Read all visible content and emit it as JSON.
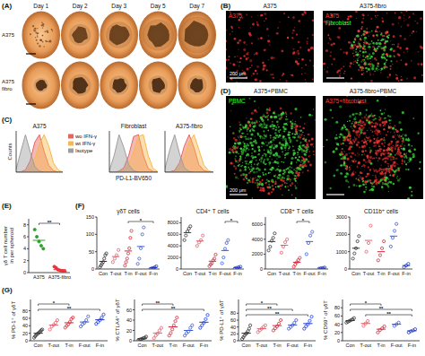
{
  "figure": {
    "panel_labels": [
      "(A)",
      "(B)",
      "(C)",
      "(D)",
      "(E)",
      "(F)",
      "(G)"
    ],
    "A": {
      "columns": [
        "Day 1",
        "Day 2",
        "Day 3",
        "Day 5",
        "Day 7"
      ],
      "rows": [
        "A375",
        "A375 fibro"
      ]
    },
    "B": {
      "titles": [
        "A375",
        "A375-fibro"
      ],
      "stains": [
        [
          {
            "text": "A375",
            "color": "#ff3b3b"
          }
        ],
        [
          {
            "text": "A375",
            "color": "#ff3b3b"
          },
          {
            "text": "Fibroblast",
            "color": "#3cff3c"
          }
        ]
      ],
      "scale": "200 μm"
    },
    "D": {
      "titles": [
        "A375+PBMC",
        "A375-fibro+PBMC"
      ],
      "stains": [
        [
          {
            "text": "PBMC",
            "color": "#3cff3c"
          }
        ],
        [
          {
            "text": "A375+fibroblast",
            "color": "#ff3b3b"
          }
        ]
      ],
      "scale": "200 μm"
    }
  },
  "chart_data": [
    {
      "type": "area",
      "title": "A375",
      "y_label": "Counts",
      "x": [
        0,
        1,
        2,
        3,
        4,
        5,
        6,
        7,
        8,
        9,
        10
      ],
      "xlim": [
        0,
        10
      ],
      "ylim": [
        0,
        110
      ],
      "tick_labels": false,
      "legend": "right",
      "series": [
        {
          "name": "wo IFN-γ",
          "color": "#e8645c",
          "values": [
            0,
            1,
            6,
            30,
            80,
            100,
            55,
            18,
            4,
            0,
            0
          ]
        },
        {
          "name": "wt IFN-γ",
          "color": "#f7b84b",
          "values": [
            0,
            0,
            2,
            10,
            35,
            75,
            100,
            70,
            25,
            6,
            0
          ]
        },
        {
          "name": "Isotype",
          "color": "#9e9e9e",
          "values": [
            8,
            55,
            100,
            55,
            15,
            3,
            0,
            0,
            0,
            0,
            0
          ]
        }
      ]
    },
    {
      "type": "area",
      "title": "Fibroblast",
      "x_label": "PD-L1-BV650",
      "x": [
        0,
        1,
        2,
        3,
        4,
        5,
        6,
        7,
        8,
        9,
        10
      ],
      "xlim": [
        0,
        10
      ],
      "ylim": [
        0,
        110
      ],
      "tick_labels": false,
      "series": [
        {
          "color": "#e8645c",
          "values": [
            0,
            0,
            3,
            12,
            45,
            95,
            100,
            45,
            10,
            2,
            0
          ]
        },
        {
          "color": "#f7b84b",
          "values": [
            0,
            0,
            1,
            5,
            20,
            55,
            95,
            100,
            45,
            10,
            1
          ]
        },
        {
          "color": "#9e9e9e",
          "values": [
            5,
            45,
            100,
            65,
            20,
            4,
            0,
            0,
            0,
            0,
            0
          ]
        }
      ]
    },
    {
      "type": "area",
      "title": "A375-fibro",
      "x": [
        0,
        1,
        2,
        3,
        4,
        5,
        6,
        7,
        8,
        9,
        10
      ],
      "xlim": [
        0,
        10
      ],
      "ylim": [
        0,
        110
      ],
      "tick_labels": false,
      "series": [
        {
          "color": "#e8645c",
          "values": [
            0,
            1,
            5,
            25,
            70,
            100,
            65,
            20,
            5,
            1,
            0
          ]
        },
        {
          "color": "#f7b84b",
          "values": [
            0,
            0,
            2,
            12,
            40,
            80,
            100,
            60,
            20,
            4,
            0
          ]
        },
        {
          "color": "#9e9e9e",
          "values": [
            10,
            60,
            100,
            50,
            12,
            2,
            0,
            0,
            0,
            0,
            0
          ]
        }
      ]
    },
    {
      "type": "dot",
      "y_label": "γδ T cell number in per spheroid",
      "categories": [
        "A375",
        "A375-fibro"
      ],
      "colors": [
        "#2ca02c",
        "#e8323c"
      ],
      "marker": "circle",
      "values": [
        [
          7.2,
          6.0,
          5.2,
          4.5,
          4.0
        ],
        [
          1.0,
          0.8,
          0.5,
          0.4,
          0.3,
          0.2,
          0.2
        ]
      ],
      "means": [
        5.4,
        0.5
      ],
      "ylim": [
        0,
        9
      ],
      "yticks": [
        0,
        2,
        4,
        6,
        8
      ],
      "annotations": [
        {
          "between": [
            "A375",
            "A375-fibro"
          ],
          "text": "**"
        }
      ]
    },
    {
      "type": "dot",
      "title": "γδT cells",
      "categories": [
        "Con",
        "T-out",
        "T-in",
        "F-out",
        "F-in"
      ],
      "colors": [
        "#333333",
        "#e0606e",
        "#d42a3a",
        "#3b5bd6",
        "#2038c8"
      ],
      "marker": "open-circle",
      "values": [
        [
          5,
          10,
          15,
          20,
          30,
          40,
          45
        ],
        [
          20,
          30,
          40,
          55
        ],
        [
          10,
          20,
          30,
          45,
          60,
          90,
          110
        ],
        [
          15,
          30,
          60,
          100,
          120
        ],
        [
          0,
          2,
          3,
          5,
          8
        ]
      ],
      "means": [
        22,
        36,
        52,
        65,
        4
      ],
      "ylim": [
        0,
        150
      ],
      "yticks": [
        0,
        50,
        100,
        150
      ],
      "annotations": [
        {
          "between": [
            "T-in",
            "F-in"
          ],
          "text": "*"
        }
      ]
    },
    {
      "type": "dot",
      "title": "CD4⁺ T cells",
      "categories": [
        "Con",
        "T-out",
        "T-in",
        "F-out",
        "F-in"
      ],
      "colors": [
        "#333333",
        "#e0606e",
        "#d42a3a",
        "#3b5bd6",
        "#2038c8"
      ],
      "marker": "open-circle",
      "values": [
        [
          5000,
          5800,
          6500,
          7000,
          7400
        ],
        [
          4000,
          4600,
          5000,
          5800
        ],
        [
          500,
          800,
          1000,
          1500,
          1800,
          2500
        ],
        [
          1000,
          2000,
          3500,
          4500,
          5000
        ],
        [
          100,
          200,
          300,
          400
        ]
      ],
      "means": [
        6300,
        4850,
        1350,
        3200,
        250
      ],
      "ylim": [
        0,
        9000
      ],
      "yticks": [
        0,
        2000,
        4000,
        6000,
        8000
      ],
      "annotations": [
        {
          "between": [
            "F-out",
            "F-in"
          ],
          "text": "*"
        }
      ]
    },
    {
      "type": "dot",
      "title": "CD8⁺ T cells",
      "categories": [
        "Con",
        "T-out",
        "T-in",
        "F-out",
        "F-in"
      ],
      "colors": [
        "#333333",
        "#e0606e",
        "#d42a3a",
        "#3b5bd6",
        "#2038c8"
      ],
      "marker": "open-circle",
      "values": [
        [
          2500,
          3000,
          3800,
          4200,
          4800
        ],
        [
          2200,
          3000,
          3600,
          4000
        ],
        [
          300,
          600,
          900,
          1200,
          1500
        ],
        [
          2000,
          3500,
          4500,
          5000
        ],
        [
          50,
          100,
          150,
          200
        ]
      ],
      "means": [
        3700,
        3200,
        900,
        3700,
        120
      ],
      "ylim": [
        0,
        7000
      ],
      "yticks": [
        0,
        2000,
        4000,
        6000
      ],
      "annotations": [
        {
          "between": [
            "T-in",
            "F-out"
          ],
          "text": "*"
        }
      ]
    },
    {
      "type": "dot",
      "title": "CD11b⁺ cells",
      "categories": [
        "Con",
        "T-out",
        "T-in",
        "F-out",
        "F-in"
      ],
      "colors": [
        "#333333",
        "#e0606e",
        "#d42a3a",
        "#3b5bd6",
        "#2038c8"
      ],
      "marker": "open-circle",
      "values": [
        [
          600,
          900,
          1200,
          1600,
          1900
        ],
        [
          1000,
          1500,
          2500
        ],
        [
          500,
          800,
          1200,
          1600
        ],
        [
          1300,
          1800,
          2200,
          2600
        ],
        [
          100,
          200,
          300
        ]
      ],
      "means": [
        1200,
        1650,
        1000,
        1900,
        200
      ],
      "ylim": [
        0,
        3000
      ],
      "yticks": [
        0,
        1000,
        2000,
        3000
      ]
    },
    {
      "type": "dot",
      "y_label": "% PD-1⁺ of γδT",
      "categories": [
        "Con",
        "T-out",
        "T-in",
        "F-out",
        "F-in"
      ],
      "colors": [
        "#333333",
        "#e0606e",
        "#d42a3a",
        "#3b5bd6",
        "#2038c8"
      ],
      "marker": "open-circle",
      "values": [
        [
          8,
          12,
          15,
          18,
          20,
          22,
          25,
          28,
          30
        ],
        [
          30,
          38,
          42,
          48,
          55
        ],
        [
          35,
          40,
          44,
          50,
          58,
          62
        ],
        [
          38,
          44,
          48,
          55,
          65
        ],
        [
          45,
          50,
          55,
          62,
          70
        ]
      ],
      "means": [
        20,
        42,
        48,
        50,
        56
      ],
      "ylim": [
        0,
        110
      ],
      "yticks": [
        0,
        20,
        40,
        60,
        80
      ],
      "annotations": [
        {
          "between": [
            "Con",
            "T-in"
          ],
          "text": "*"
        },
        {
          "between": [
            "Con",
            "F-in"
          ],
          "text": "**"
        }
      ]
    },
    {
      "type": "dot",
      "y_label": "% CTLA4⁺ of γδT",
      "categories": [
        "Con",
        "T-out",
        "T-in",
        "F-out",
        "F-in"
      ],
      "colors": [
        "#333333",
        "#e0606e",
        "#d42a3a",
        "#3b5bd6",
        "#2038c8"
      ],
      "marker": "open-circle",
      "values": [
        [
          1,
          2,
          3,
          4,
          5,
          6,
          8
        ],
        [
          5,
          10,
          14,
          20,
          25
        ],
        [
          10,
          15,
          22,
          30,
          38,
          45
        ],
        [
          10,
          15,
          18,
          25,
          30
        ],
        [
          25,
          30,
          35,
          42,
          50
        ]
      ],
      "means": [
        4,
        15,
        27,
        20,
        36
      ],
      "ylim": [
        0,
        80
      ],
      "yticks": [
        0,
        20,
        40,
        60
      ],
      "annotations": [
        {
          "between": [
            "Con",
            "T-in"
          ],
          "text": "**"
        },
        {
          "between": [
            "Con",
            "F-in"
          ],
          "text": "**"
        }
      ]
    },
    {
      "type": "dot",
      "y_label": "% PD-L1⁺ of γδT",
      "categories": [
        "Con",
        "T-out",
        "T-in",
        "F-out",
        "F-in"
      ],
      "colors": [
        "#333333",
        "#e0606e",
        "#d42a3a",
        "#3b5bd6",
        "#2038c8"
      ],
      "marker": "open-circle",
      "values": [
        [
          5,
          10,
          15,
          20,
          22,
          28,
          35,
          45
        ],
        [
          25,
          30,
          35,
          40,
          45
        ],
        [
          30,
          36,
          42,
          50,
          60
        ],
        [
          35,
          40,
          45,
          52,
          60
        ],
        [
          35,
          42,
          48,
          58,
          70
        ]
      ],
      "means": [
        22,
        35,
        44,
        46,
        50
      ],
      "ylim": [
        0,
        120
      ],
      "yticks": [
        0,
        20,
        40,
        60,
        80
      ],
      "annotations": [
        {
          "between": [
            "Con",
            "T-in"
          ],
          "text": "*"
        },
        {
          "between": [
            "Con",
            "F-out"
          ],
          "text": "**"
        },
        {
          "between": [
            "Con",
            "F-in"
          ],
          "text": "**"
        }
      ]
    },
    {
      "type": "dot",
      "y_label": "% CD69⁺ of γδT",
      "categories": [
        "Con",
        "T-out",
        "T-in",
        "F-out",
        "F-in"
      ],
      "colors": [
        "#333333",
        "#e0606e",
        "#d42a3a",
        "#3b5bd6",
        "#2038c8"
      ],
      "marker": "open-circle",
      "values": [
        [
          44,
          46,
          48,
          50,
          52,
          55
        ],
        [
          36,
          42,
          48
        ],
        [
          20,
          26,
          30,
          35
        ],
        [
          36,
          40,
          44
        ],
        [
          20,
          23,
          25,
          28
        ]
      ],
      "means": [
        49,
        42,
        28,
        40,
        24
      ],
      "ylim": [
        0,
        100
      ],
      "yticks": [
        0,
        20,
        40,
        60,
        80
      ],
      "annotations": [
        {
          "between": [
            "Con",
            "T-in"
          ],
          "text": "*"
        },
        {
          "between": [
            "Con",
            "F-in"
          ],
          "text": "**"
        },
        {
          "between": [
            "T-out",
            "F-in"
          ],
          "text": "**"
        }
      ]
    }
  ]
}
